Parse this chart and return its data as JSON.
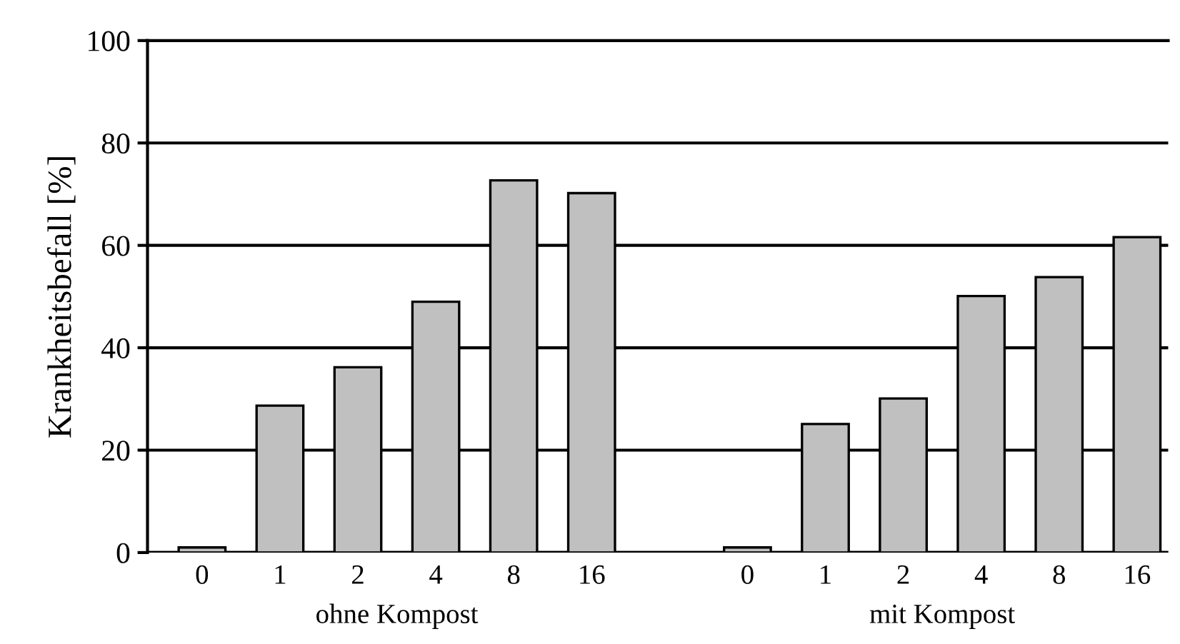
{
  "chart_data": {
    "type": "bar",
    "ylabel": "Krankheitsbefall [%]",
    "categories": [
      "0",
      "1",
      "2",
      "4",
      "8",
      "16",
      null,
      "0",
      "1",
      "2",
      "4",
      "8",
      "16"
    ],
    "values": [
      1,
      28.7,
      36.2,
      49,
      72.7,
      70.2,
      null,
      1,
      25.1,
      30.1,
      50.1,
      53.8,
      61.6
    ],
    "color": "#c0c0c0",
    "ylim": [
      0,
      100
    ],
    "yticks": [
      0,
      20,
      40,
      60,
      80,
      100
    ],
    "grid": "y",
    "annotations": [
      "ohne Kompost",
      "mit Kompost"
    ]
  }
}
